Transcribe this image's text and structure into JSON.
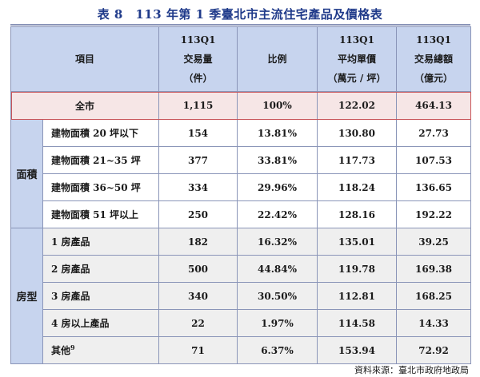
{
  "title": "表 8　113 年第 1 季臺北市主流住宅產品及價格表",
  "header": {
    "item": "項目",
    "count": [
      "113Q1",
      "交易量",
      "（件）"
    ],
    "ratio": "比例",
    "avg_price": [
      "113Q1",
      "平均單價",
      "（萬元 / 坪）"
    ],
    "total": [
      "113Q1",
      "交易總額",
      "（億元）"
    ]
  },
  "total_row": {
    "label": "全市",
    "count": "1,115",
    "ratio": "100%",
    "avg_price": "122.02",
    "total": "464.13"
  },
  "groups": [
    {
      "label": "面積",
      "rows": [
        {
          "item": "建物面積 20 坪以下",
          "count": "154",
          "ratio": "13.81%",
          "avg_price": "130.80",
          "total": "27.73"
        },
        {
          "item": "建物面積 21~35 坪",
          "count": "377",
          "ratio": "33.81%",
          "avg_price": "117.73",
          "total": "107.53"
        },
        {
          "item": "建物面積 36~50 坪",
          "count": "334",
          "ratio": "29.96%",
          "avg_price": "118.24",
          "total": "136.65"
        },
        {
          "item": "建物面積 51 坪以上",
          "count": "250",
          "ratio": "22.42%",
          "avg_price": "128.16",
          "total": "192.22"
        }
      ]
    },
    {
      "label": "房型",
      "rows": [
        {
          "item": "1 房產品",
          "count": "182",
          "ratio": "16.32%",
          "avg_price": "135.01",
          "total": "39.25"
        },
        {
          "item": "2 房產品",
          "count": "500",
          "ratio": "44.84%",
          "avg_price": "119.78",
          "total": "169.38"
        },
        {
          "item": "3 房產品",
          "count": "340",
          "ratio": "30.50%",
          "avg_price": "112.81",
          "total": "168.25"
        },
        {
          "item": "4 房以上產品",
          "count": "22",
          "ratio": "1.97%",
          "avg_price": "114.58",
          "total": "14.33"
        },
        {
          "item": "其他",
          "sup": "9",
          "count": "71",
          "ratio": "6.37%",
          "avg_price": "153.94",
          "total": "72.92"
        }
      ]
    }
  ],
  "source": "資料來源：臺北市政府地政局"
}
